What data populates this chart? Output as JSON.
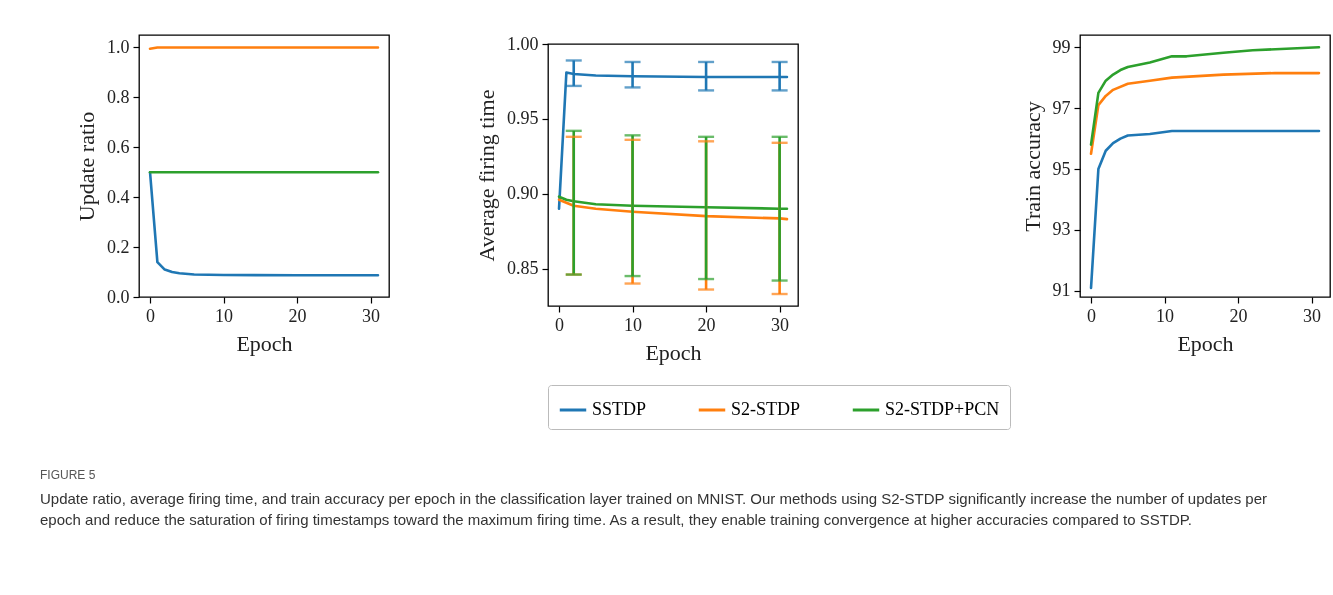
{
  "chart_data": [
    {
      "type": "line",
      "xlabel": "Epoch",
      "ylabel": "Update ratio",
      "xlim": [
        -1.5,
        32.5
      ],
      "xticks": [
        0,
        10,
        20,
        30
      ],
      "ylim": [
        0,
        1.05
      ],
      "yticks": [
        {
          "value": 0,
          "label": "0.0"
        },
        {
          "value": 0.2,
          "label": "0.2"
        },
        {
          "value": 0.4,
          "label": "0.4"
        },
        {
          "value": 0.6,
          "label": "0.6"
        },
        {
          "value": 0.8,
          "label": "0.8"
        },
        {
          "value": 1,
          "label": "1.0"
        }
      ],
      "series": [
        {
          "color": "#1f77b4",
          "x": [
            0,
            1,
            2,
            3,
            4,
            6,
            10,
            20,
            31
          ],
          "values": [
            0.5,
            0.14,
            0.11,
            0.1,
            0.095,
            0.09,
            0.088,
            0.087,
            0.087
          ]
        },
        {
          "color": "#ff7f0e",
          "x": [
            0,
            1,
            31
          ],
          "values": [
            0.995,
            1.0,
            1.0
          ]
        },
        {
          "color": "#2ca02c",
          "x": [
            0,
            31
          ],
          "values": [
            0.5,
            0.5
          ]
        }
      ],
      "annotations": [
        "FIGURE 5",
        "Update ratio, average firing time, and train accuracy per epoch in the classification layer trained on MNIST. Our methods using S2-STDP significantly increase the number of updates per epoch and reduce the saturation of firing timestamps toward the maximum firing time. As a result, they enable training convergence at higher accuracies compared to SSTDP."
      ]
    },
    {
      "type": "line",
      "xlabel": "Epoch",
      "ylabel": "Average firing time",
      "xlim": [
        -1.5,
        32.5
      ],
      "xticks": [
        0,
        10,
        20,
        30
      ],
      "ylim": [
        0.825,
        1.0
      ],
      "yticks": [
        {
          "value": 0.85,
          "label": "0.85"
        },
        {
          "value": 0.9,
          "label": "0.90"
        },
        {
          "value": 0.95,
          "label": "0.95"
        },
        {
          "value": 1,
          "label": "1.00"
        }
      ],
      "legend": "bottom",
      "series": [
        {
          "name": "SSTDP",
          "color": "#1f77b4",
          "x": [
            0,
            1,
            2,
            5,
            10,
            20,
            30,
            31
          ],
          "values": [
            0.89,
            0.981,
            0.98,
            0.979,
            0.9785,
            0.978,
            0.978,
            0.978
          ],
          "errors": [
            null,
            null,
            [
              0.972,
              0.989
            ],
            null,
            [
              0.971,
              0.988
            ],
            [
              0.969,
              0.988
            ],
            [
              0.969,
              0.988
            ],
            null
          ]
        },
        {
          "name": "S2-STDP",
          "color": "#ff7f0e",
          "x": [
            0,
            2,
            5,
            10,
            20,
            30,
            31
          ],
          "values": [
            0.896,
            0.892,
            0.89,
            0.888,
            0.885,
            0.8835,
            0.883
          ],
          "errors": [
            null,
            [
              0.846,
              0.938
            ],
            null,
            [
              0.84,
              0.936
            ],
            [
              0.836,
              0.935
            ],
            [
              0.833,
              0.934
            ],
            null
          ]
        },
        {
          "name": "S2-STDP+PCN",
          "color": "#2ca02c",
          "x": [
            0,
            1,
            2,
            5,
            10,
            20,
            30,
            31
          ],
          "values": [
            0.898,
            0.896,
            0.895,
            0.893,
            0.892,
            0.891,
            0.89,
            0.89
          ],
          "errors": [
            null,
            null,
            [
              0.846,
              0.942
            ],
            null,
            [
              0.845,
              0.939
            ],
            [
              0.843,
              0.938
            ],
            [
              0.842,
              0.938
            ],
            null
          ]
        }
      ]
    },
    {
      "type": "line",
      "xlabel": "Epoch",
      "ylabel": "Train accuracy",
      "xlim": [
        -1.5,
        32.5
      ],
      "xticks": [
        0,
        10,
        20,
        30
      ],
      "ylim": [
        90.8,
        99.4
      ],
      "yticks": [
        91,
        93,
        95,
        97,
        99
      ],
      "series": [
        {
          "color": "#1f77b4",
          "x": [
            0,
            1,
            2,
            3,
            4,
            5,
            8,
            11,
            20,
            31
          ],
          "values": [
            91.1,
            95.0,
            95.6,
            95.85,
            96.0,
            96.1,
            96.15,
            96.25,
            96.25,
            96.25
          ]
        },
        {
          "color": "#ff7f0e",
          "x": [
            0,
            1,
            2,
            3,
            5,
            8,
            11,
            18,
            25,
            31
          ],
          "values": [
            95.5,
            97.1,
            97.4,
            97.6,
            97.8,
            97.9,
            98.0,
            98.1,
            98.15,
            98.15
          ]
        },
        {
          "color": "#2ca02c",
          "x": [
            0,
            1,
            2,
            3,
            4,
            5,
            8,
            11,
            13,
            18,
            22,
            31
          ],
          "values": [
            95.8,
            97.5,
            97.9,
            98.1,
            98.25,
            98.35,
            98.5,
            98.7,
            98.7,
            98.82,
            98.9,
            99.0
          ]
        }
      ]
    }
  ]
}
